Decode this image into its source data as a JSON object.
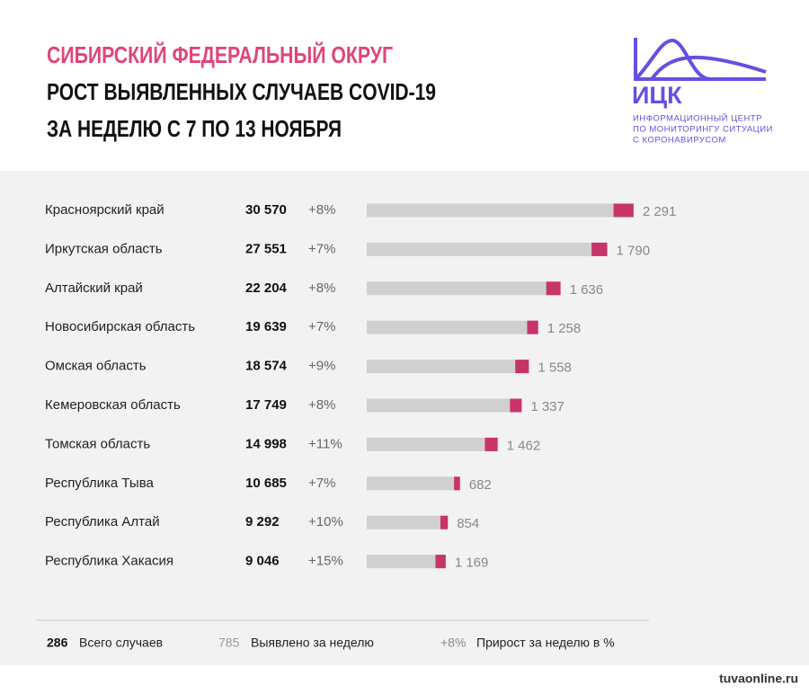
{
  "chart_data": {
    "type": "bar",
    "title": "СИБИРСКИЙ ФЕДЕРАЛЬНЫЙ ОКРУГ",
    "subtitle": [
      "РОСТ ВЫЯВЛЕННЫХ СЛУЧАЕВ COVID-19",
      "ЗА НЕДЕЛЮ С 7 ПО 13 НОЯБРЯ"
    ],
    "logo": {
      "name": "ИЦК",
      "lines": [
        "ИНФОРМАЦИОННЫЙ ЦЕНТР",
        "ПО МОНИТОРИНГУ СИТУАЦИИ",
        "С КОРОНАВИРУСОМ"
      ]
    },
    "categories": [
      "Красноярский край",
      "Иркутская область",
      "Алтайский край",
      "Новосибирская область",
      "Омская область",
      "Кемеровская область",
      "Томская область",
      "Республика Тыва",
      "Республика Алтай",
      "Республика Хакасия"
    ],
    "values": [
      30570,
      27551,
      22204,
      19639,
      18574,
      17749,
      14998,
      10685,
      9292,
      9046
    ],
    "value_labels": [
      "30 570",
      "27 551",
      "22 204",
      "19 639",
      "18 574",
      "17 749",
      "14 998",
      "10 685",
      "9 292",
      "9 046"
    ],
    "color": "#d0d0d0",
    "growth": {
      "values": [
        8,
        7,
        8,
        7,
        9,
        8,
        11,
        7,
        10,
        15
      ],
      "value_labels": [
        "+8%",
        "+7%",
        "+8%",
        "+7%",
        "+9%",
        "+8%",
        "+11%",
        "+7%",
        "+10%",
        "+15%"
      ]
    },
    "weekly": {
      "color": "#c8336a",
      "values": [
        2291,
        1790,
        1636,
        1258,
        1558,
        1337,
        1462,
        682,
        854,
        1169
      ],
      "value_labels": [
        "2 291",
        "1 790",
        "1 636",
        "1 258",
        "1 558",
        "1 337",
        "1 462",
        "682",
        "854",
        "1 169"
      ]
    },
    "xlim": [
      0,
      31000
    ],
    "legend": [
      {
        "sample": "286",
        "label": "Всего случаев"
      },
      {
        "sample": "785",
        "label": "Выявлено за неделю"
      },
      {
        "sample": "+8%",
        "label": "Прирост за неделю в %"
      }
    ],
    "source": "tuvaonline.ru"
  }
}
